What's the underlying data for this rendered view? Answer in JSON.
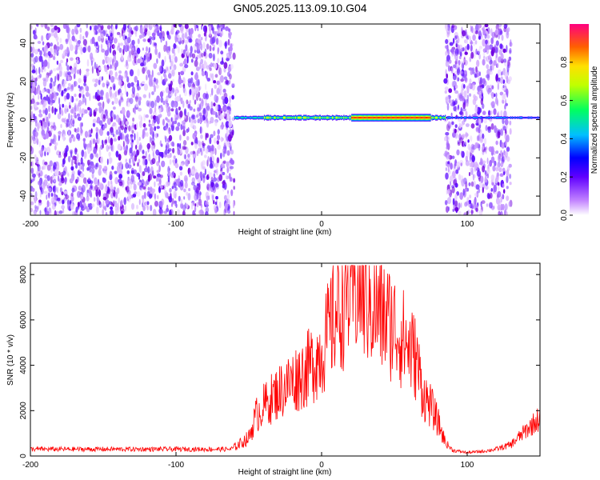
{
  "title": "GN05.2025.113.09.10.G04",
  "chart_data": [
    {
      "type": "heatmap",
      "xlabel": "Height of straight line (km)",
      "ylabel": "Frequency (Hz)",
      "xlim": [
        -200,
        150
      ],
      "ylim": [
        -50,
        50
      ],
      "x_ticks": [
        -200,
        -100,
        0,
        100
      ],
      "y_ticks": [
        -40,
        -20,
        0,
        20,
        40
      ],
      "colorbar": {
        "label": "Normalized spectral amplitude",
        "range": [
          0,
          1
        ],
        "ticks": [
          "0.0",
          "0.2",
          "0.4",
          "0.6",
          "0.8"
        ]
      },
      "noise_regions_x": [
        [
          -200,
          -60
        ],
        [
          85,
          130
        ]
      ],
      "signal_trace": {
        "x_range": [
          -60,
          150
        ],
        "center_frequency_hz": 1,
        "peak_x_range": [
          20,
          75
        ],
        "colors": [
          "#8000ff",
          "#0040ff",
          "#00c0ff",
          "#00ff80",
          "#c0ff00",
          "#ffff00",
          "#ff8000",
          "#ff0000"
        ]
      }
    },
    {
      "type": "line",
      "xlabel": "Height of straight line (km)",
      "ylabel": "SNR (10 * v/v)",
      "xlim": [
        -200,
        150
      ],
      "ylim": [
        0,
        8500
      ],
      "x_ticks": [
        -200,
        -100,
        0,
        100
      ],
      "y_ticks": [
        0,
        2000,
        4000,
        6000,
        8000
      ],
      "color": "#ff0000",
      "envelope": {
        "x": [
          -200,
          -100,
          -62,
          -50,
          -45,
          -40,
          -30,
          -20,
          -10,
          0,
          10,
          20,
          25,
          30,
          40,
          50,
          60,
          65,
          70,
          75,
          80,
          85,
          90,
          100,
          110,
          120,
          130,
          140,
          150
        ],
        "y": [
          300,
          300,
          300,
          800,
          1800,
          2200,
          2800,
          3300,
          3800,
          4600,
          6300,
          7300,
          7600,
          7100,
          6300,
          5700,
          4800,
          4300,
          2700,
          2200,
          1500,
          600,
          250,
          150,
          200,
          300,
          500,
          1100,
          1700
        ]
      }
    }
  ]
}
